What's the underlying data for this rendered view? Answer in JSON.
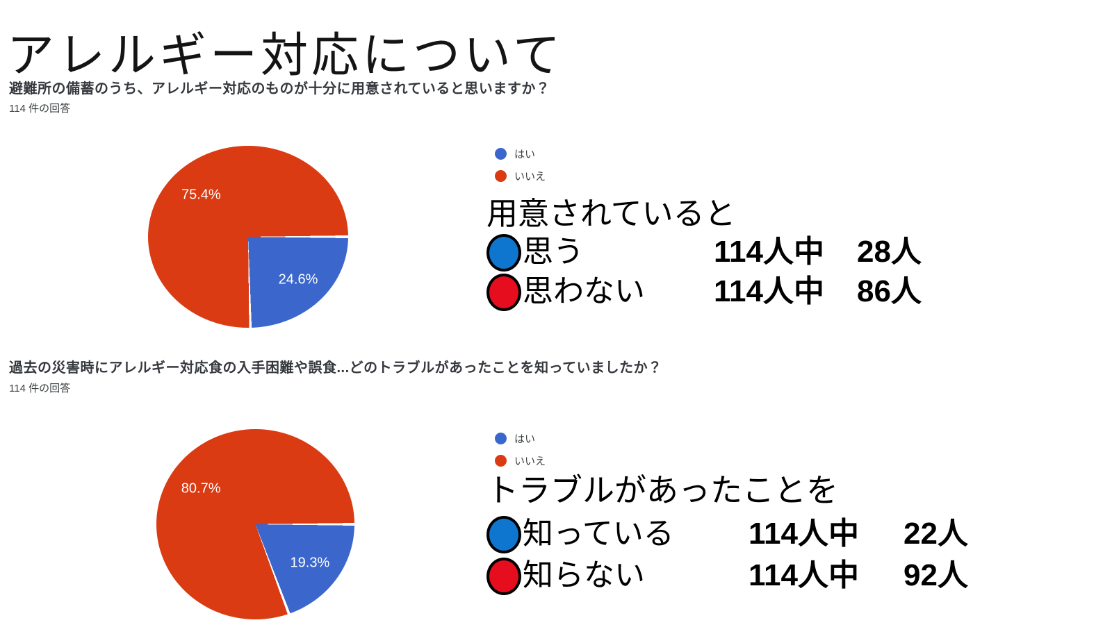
{
  "page": {
    "title": "アレルギー対応について",
    "background": "#ffffff"
  },
  "colors": {
    "pie_blue": "#3b67cc",
    "pie_red": "#da3b12",
    "marker_blue": "#0e76cf",
    "marker_red": "#e60d1e",
    "pie_label": "#ffffff",
    "text_dark": "#202124"
  },
  "sections": [
    {
      "question": "避難所の備蓄のうち、アレルギー対応のものが十分に用意されていると思いますか？",
      "response_count": "114 件の回答",
      "legend": [
        {
          "label": "はい"
        },
        {
          "label": "いいえ"
        }
      ],
      "summary": {
        "heading": "用意されていると",
        "rows": [
          {
            "marker": "blue",
            "label": "思う",
            "denominator": "114人中",
            "count": "28人"
          },
          {
            "marker": "red",
            "label": "思わない",
            "denominator": "114人中",
            "count": "86人"
          }
        ]
      }
    },
    {
      "question": "過去の災害時にアレルギー対応食の入手困難や誤食...どのトラブルがあったことを知っていましたか？",
      "response_count": "114 件の回答",
      "legend": [
        {
          "label": "はい"
        },
        {
          "label": "いいえ"
        }
      ],
      "summary": {
        "heading": "トラブルがあったことを",
        "rows": [
          {
            "marker": "blue",
            "label": "知っている",
            "denominator": "114人中",
            "count": "22人"
          },
          {
            "marker": "red",
            "label": "知らない",
            "denominator": "114人中",
            "count": "92人"
          }
        ]
      }
    }
  ],
  "chart_data": [
    {
      "type": "pie",
      "title": "避難所の備蓄のうち、アレルギー対応のものが十分に用意されていると思いますか？",
      "labels": [
        "はい",
        "いいえ"
      ],
      "values": [
        24.6,
        75.4
      ],
      "display_labels": [
        "24.6%",
        "75.4%"
      ],
      "colors": [
        "#3b67cc",
        "#da3b12"
      ],
      "counts": [
        28,
        86
      ],
      "total_responses": 114,
      "legend_position": "right",
      "start_edge": "east",
      "direction": "clockwise"
    },
    {
      "type": "pie",
      "title": "過去の災害時にアレルギー対応食の入手困難や誤食...どのトラブルがあったことを知っていましたか？",
      "labels": [
        "はい",
        "いいえ"
      ],
      "values": [
        19.3,
        80.7
      ],
      "display_labels": [
        "19.3%",
        "80.7%"
      ],
      "colors": [
        "#3b67cc",
        "#da3b12"
      ],
      "counts": [
        22,
        92
      ],
      "total_responses": 114,
      "legend_position": "right",
      "start_edge": "east",
      "direction": "clockwise"
    }
  ]
}
